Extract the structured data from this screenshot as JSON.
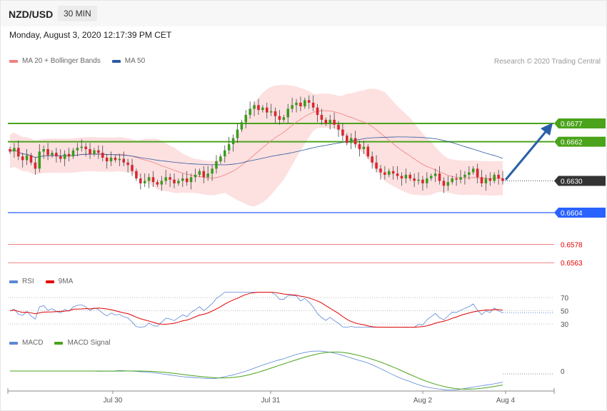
{
  "header": {
    "pair": "NZD/USD",
    "timeframe": "30 MIN",
    "datetime": "Monday, August 3, 2020 12:17:39 PM CET"
  },
  "legend": {
    "main": [
      {
        "label": "MA 20 + Bollinger Bands",
        "color": "#f08080"
      },
      {
        "label": "MA 50",
        "color": "#2c5aa0"
      }
    ],
    "rsi": [
      {
        "label": "RSI",
        "color": "#5b87d6"
      },
      {
        "label": "9MA",
        "color": "#e30000"
      }
    ],
    "macd": [
      {
        "label": "MACD",
        "color": "#5b87d6"
      },
      {
        "label": "MACD Signal",
        "color": "#4aa31a"
      }
    ]
  },
  "credit": "Research © 2020 Trading Central",
  "chart_data": [
    {
      "type": "candlestick",
      "x_labels": [
        "Jul 30",
        "Jul 31",
        "Aug 2",
        "Aug 4"
      ],
      "levels": [
        {
          "value": "0.6677",
          "kind": "resistance",
          "color": "#4aa31a"
        },
        {
          "value": "0.6662",
          "kind": "resistance",
          "color": "#4aa31a"
        },
        {
          "value": "0.6630",
          "kind": "last price",
          "color": "#333333"
        },
        {
          "value": "0.6604",
          "kind": "pivot",
          "color": "#2962ff"
        },
        {
          "value": "0.6578",
          "kind": "support",
          "color": "#e30000"
        },
        {
          "value": "0.6563",
          "kind": "support",
          "color": "#e30000"
        }
      ],
      "price_range": [
        0.6563,
        0.6702
      ],
      "close_series": [
        0.6654,
        0.6657,
        0.665,
        0.6647,
        0.6651,
        0.6645,
        0.664,
        0.6654,
        0.6656,
        0.6651,
        0.6653,
        0.665,
        0.6648,
        0.6652,
        0.665,
        0.6655,
        0.6657,
        0.6658,
        0.6656,
        0.6652,
        0.6655,
        0.6653,
        0.6649,
        0.6646,
        0.6649,
        0.6647,
        0.6648,
        0.6645,
        0.6643,
        0.6638,
        0.6632,
        0.6628,
        0.663,
        0.6633,
        0.6629,
        0.6627,
        0.663,
        0.6633,
        0.6631,
        0.6628,
        0.663,
        0.6632,
        0.6629,
        0.6633,
        0.6635,
        0.6638,
        0.6633,
        0.6636,
        0.664,
        0.6646,
        0.665,
        0.6655,
        0.666,
        0.6665,
        0.6672,
        0.6678,
        0.6684,
        0.6689,
        0.6692,
        0.6688,
        0.669,
        0.6686,
        0.6687,
        0.6683,
        0.668,
        0.6682,
        0.6689,
        0.6692,
        0.6694,
        0.6691,
        0.6696,
        0.6694,
        0.669,
        0.6684,
        0.668,
        0.6677,
        0.668,
        0.6676,
        0.6672,
        0.6667,
        0.6661,
        0.6665,
        0.666,
        0.6656,
        0.6658,
        0.665,
        0.6645,
        0.664,
        0.6637,
        0.6635,
        0.6638,
        0.6636,
        0.6634,
        0.6632,
        0.6635,
        0.6632,
        0.663,
        0.6631,
        0.6628,
        0.6632,
        0.6634,
        0.6636,
        0.663,
        0.6626,
        0.6629,
        0.6632,
        0.6631,
        0.6633,
        0.6635,
        0.6637,
        0.664,
        0.6633,
        0.6628,
        0.6632,
        0.663,
        0.6635,
        0.6632,
        0.663
      ],
      "rsi": {
        "levels": [
          "70",
          "50",
          "30"
        ]
      },
      "macd": {
        "levels": [
          "0"
        ]
      }
    }
  ]
}
